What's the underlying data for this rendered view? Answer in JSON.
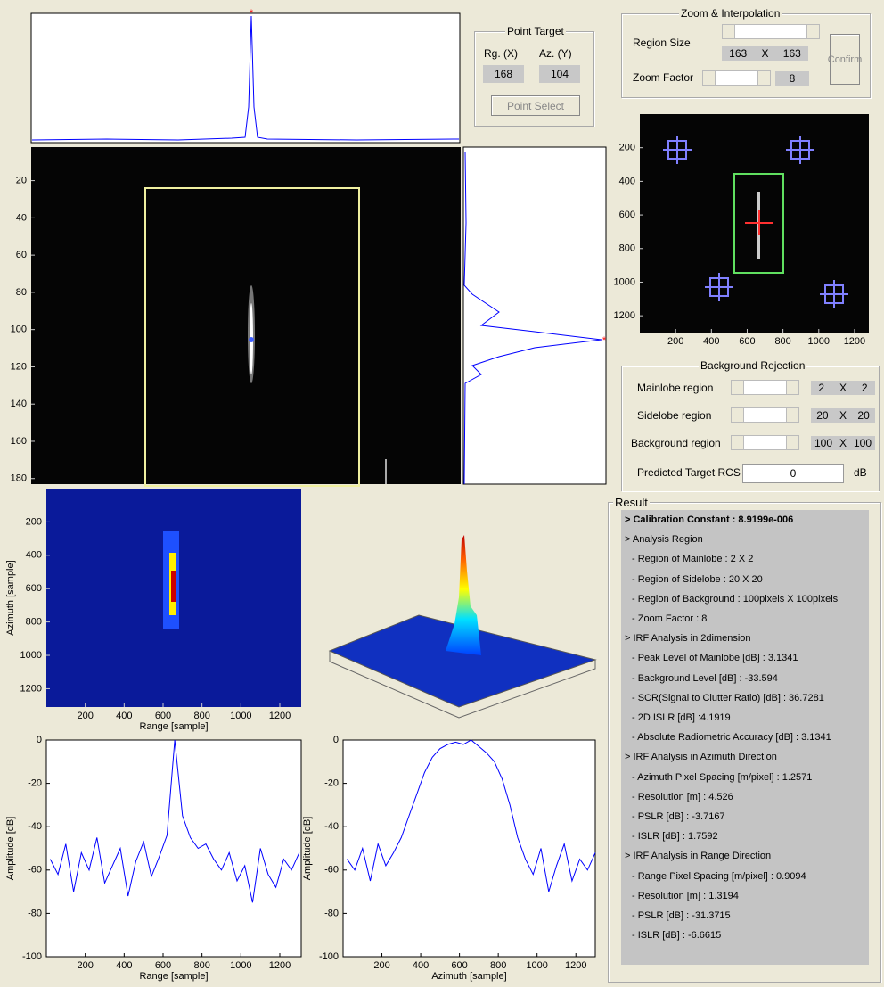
{
  "point_target": {
    "title": "Point Target",
    "labels": [
      "Rg. (X)",
      "Az. (Y)"
    ],
    "values": [
      "168",
      "104"
    ],
    "button": "Point Select"
  },
  "zoom": {
    "title": "Zoom & Interpolation",
    "region_label": "Region Size",
    "region_size": [
      "163",
      "X",
      "163"
    ],
    "factor_label": "Zoom Factor",
    "factor": "8",
    "button": "Confirm"
  },
  "background_rejection": {
    "title": "Background Rejection",
    "rows": [
      {
        "label": "Mainlobe region",
        "value": [
          "2",
          "X",
          "2"
        ]
      },
      {
        "label": "Sidelobe region",
        "value": [
          "20",
          "X",
          "20"
        ]
      },
      {
        "label": "Background region",
        "value": [
          "100",
          "X",
          "100"
        ]
      }
    ],
    "rcs_label": "Predicted Target RCS",
    "rcs_value": "0",
    "rcs_unit": "dB"
  },
  "images": {
    "main": {
      "ylim": [
        2,
        183
      ],
      "yticks": [
        20,
        40,
        60,
        80,
        100,
        120,
        140,
        160,
        180
      ]
    },
    "overview": {
      "xlim": [
        0,
        1280
      ],
      "xticks": [
        200,
        400,
        600,
        800,
        1000,
        1200
      ],
      "ylim": [
        0,
        1300
      ],
      "yticks": [
        200,
        400,
        600,
        800,
        1000,
        1200
      ]
    },
    "colormap": {
      "xlim": [
        0,
        1310
      ],
      "xticks": [
        200,
        400,
        600,
        800,
        1000,
        1200
      ],
      "ylim": [
        0,
        1310
      ],
      "yticks": [
        200,
        400,
        600,
        800,
        1000,
        1200
      ],
      "xlabel": "Range [sample]",
      "ylabel": "Azimuth [sample]"
    }
  },
  "chart_data": [
    {
      "type": "line",
      "xlabel": "Range [sample]",
      "ylabel": "Amplitude [dB]",
      "color": "#0000ff",
      "x": [
        20,
        60,
        100,
        140,
        180,
        220,
        260,
        300,
        340,
        380,
        420,
        460,
        500,
        540,
        580,
        620,
        660,
        700,
        740,
        780,
        820,
        860,
        900,
        940,
        980,
        1020,
        1060,
        1100,
        1140,
        1180,
        1220,
        1260,
        1300
      ],
      "values": [
        -55,
        -62,
        -48,
        -70,
        -52,
        -60,
        -45,
        -66,
        -58,
        -50,
        -72,
        -56,
        -47,
        -63,
        -54,
        -44,
        0,
        -35,
        -45,
        -50,
        -48,
        -55,
        -60,
        -52,
        -65,
        -58,
        -75,
        -50,
        -62,
        -68,
        -55,
        -60,
        -52
      ],
      "xlim": [
        0,
        1310
      ],
      "xticks": [
        200,
        400,
        600,
        800,
        1000,
        1200
      ],
      "ylim": [
        -100,
        0
      ],
      "yticks": [
        -100,
        -80,
        -60,
        -40,
        -20,
        0
      ]
    },
    {
      "type": "line",
      "xlabel": "Azimuth [sample]",
      "ylabel": "Amplitude [dB]",
      "color": "#0000ff",
      "x": [
        20,
        60,
        100,
        140,
        180,
        220,
        260,
        300,
        340,
        380,
        420,
        460,
        500,
        540,
        580,
        620,
        660,
        700,
        740,
        780,
        820,
        860,
        900,
        940,
        980,
        1020,
        1060,
        1100,
        1140,
        1180,
        1220,
        1260,
        1300
      ],
      "values": [
        -55,
        -60,
        -50,
        -65,
        -48,
        -58,
        -52,
        -45,
        -35,
        -25,
        -15,
        -8,
        -4,
        -2,
        -1,
        -2,
        0,
        -3,
        -6,
        -10,
        -18,
        -30,
        -45,
        -55,
        -62,
        -50,
        -70,
        -58,
        -48,
        -65,
        -55,
        -60,
        -52
      ],
      "xlim": [
        0,
        1300
      ],
      "xticks": [
        200,
        400,
        600,
        800,
        1000,
        1200
      ],
      "ylim": [
        -100,
        0
      ],
      "yticks": [
        -100,
        -80,
        -60,
        -40,
        -20,
        0
      ]
    }
  ],
  "result": {
    "title": "Result",
    "lines": [
      "> Calibration Constant : 8.9199e-006",
      "> Analysis Region",
      "- Region of Mainlobe : 2 X 2",
      "- Region of Sidelobe : 20 X 20",
      "- Region of Background : 100pixels X 100pixels",
      "- Zoom Factor : 8",
      "> IRF Analysis in 2dimension",
      "- Peak Level of Mainlobe [dB] : 3.1341",
      "- Background Level [dB] : -33.594",
      "- SCR(Signal to Clutter Ratio) [dB] : 36.7281",
      "- 2D ISLR [dB] :4.1919",
      "- Absolute Radiometric Accuracy [dB] : 3.1341",
      "> IRF Analysis in Azimuth Direction",
      "- Azimuth Pixel Spacing [m/pixel] : 1.2571",
      "- Resolution [m] : 4.526",
      "- PSLR [dB] : -3.7167",
      "- ISLR [dB] : 1.7592",
      "> IRF Analysis in Range Direction",
      "- Range Pixel Spacing [m/pixel] : 0.9094",
      "- Resolution [m] : 1.3194",
      "- PSLR [dB] : -31.3715",
      "- ISLR [dB] : -6.6615"
    ]
  }
}
